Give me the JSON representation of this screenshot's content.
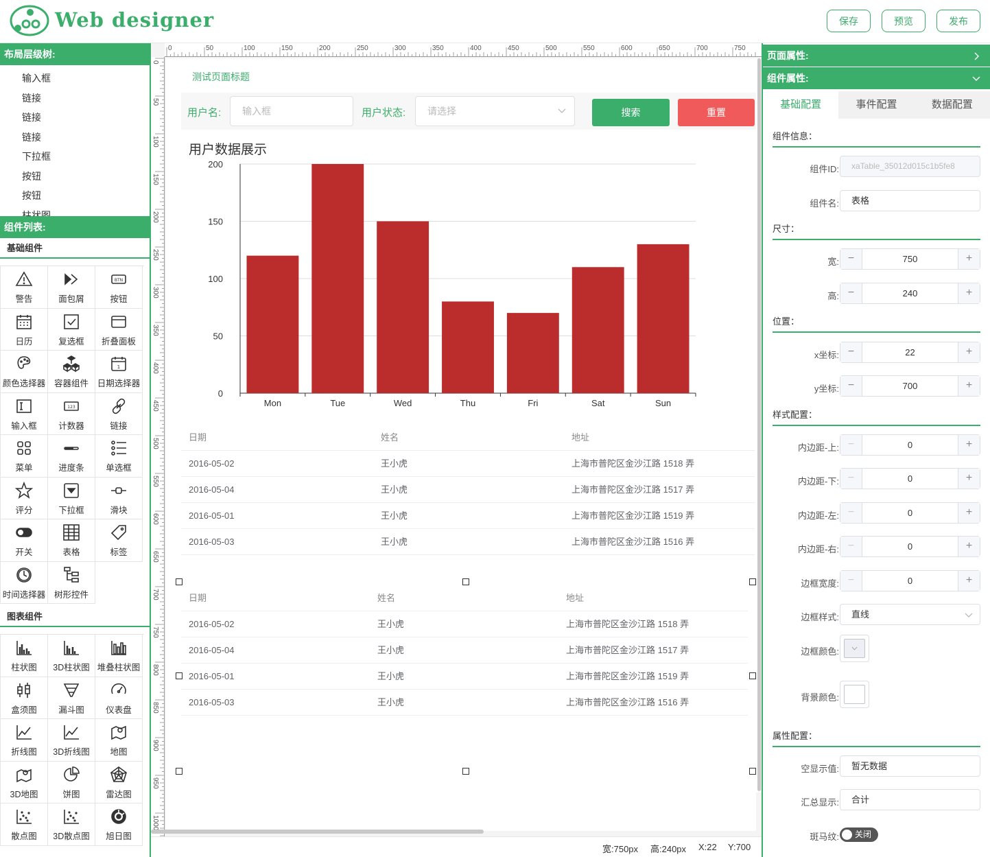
{
  "app": {
    "logo_text": "Web designer"
  },
  "header": {
    "save": "保存",
    "preview": "预览",
    "publish": "发布"
  },
  "left": {
    "tree_title": "布局层级树:",
    "tree_items": [
      "输入框",
      "链接",
      "链接",
      "链接",
      "下拉框",
      "按钮",
      "按钮",
      "柱状图"
    ],
    "components_title": "组件列表:",
    "basic_title": "基础组件",
    "basic": [
      {
        "label": "警告",
        "icon": "warning-icon"
      },
      {
        "label": "面包屑",
        "icon": "breadcrumb-icon"
      },
      {
        "label": "按钮",
        "icon": "button-icon"
      },
      {
        "label": "日历",
        "icon": "calendar-icon"
      },
      {
        "label": "复选框",
        "icon": "checkbox-icon"
      },
      {
        "label": "折叠面板",
        "icon": "collapse-icon"
      },
      {
        "label": "颜色选择器",
        "icon": "palette-icon"
      },
      {
        "label": "容器组件",
        "icon": "cubes-icon"
      },
      {
        "label": "日期选择器",
        "icon": "date-icon"
      },
      {
        "label": "输入框",
        "icon": "input-icon"
      },
      {
        "label": "计数器",
        "icon": "counter-icon"
      },
      {
        "label": "链接",
        "icon": "link-icon"
      },
      {
        "label": "菜单",
        "icon": "menu-icon"
      },
      {
        "label": "进度条",
        "icon": "progress-icon"
      },
      {
        "label": "单选框",
        "icon": "radio-list-icon"
      },
      {
        "label": "评分",
        "icon": "star-icon"
      },
      {
        "label": "下拉框",
        "icon": "select-icon"
      },
      {
        "label": "滑块",
        "icon": "slider-icon"
      },
      {
        "label": "开关",
        "icon": "switch-icon"
      },
      {
        "label": "表格",
        "icon": "table-icon"
      },
      {
        "label": "标签",
        "icon": "tag-icon"
      },
      {
        "label": "时间选择器",
        "icon": "clock-icon"
      },
      {
        "label": "树形控件",
        "icon": "tree-icon"
      }
    ],
    "chart_title": "图表组件",
    "charts": [
      {
        "label": "柱状图",
        "icon": "bar-chart-icon"
      },
      {
        "label": "3D柱状图",
        "icon": "bar3d-chart-icon"
      },
      {
        "label": "堆叠柱状图",
        "icon": "stacked-bar-icon"
      },
      {
        "label": "盒须图",
        "icon": "boxplot-icon"
      },
      {
        "label": "漏斗图",
        "icon": "funnel-icon"
      },
      {
        "label": "仪表盘",
        "icon": "gauge-icon"
      },
      {
        "label": "折线图",
        "icon": "line-chart-icon"
      },
      {
        "label": "3D折线图",
        "icon": "line3d-chart-icon"
      },
      {
        "label": "地图",
        "icon": "map-icon"
      },
      {
        "label": "3D地图",
        "icon": "map3d-icon"
      },
      {
        "label": "饼图",
        "icon": "pie-icon"
      },
      {
        "label": "雷达图",
        "icon": "radar-icon"
      },
      {
        "label": "散点图",
        "icon": "scatter-icon"
      },
      {
        "label": "3D散点图",
        "icon": "scatter3d-icon"
      },
      {
        "label": "旭日图",
        "icon": "sunburst-icon"
      }
    ]
  },
  "ruler": {
    "top": [
      "0",
      "50",
      "100",
      "150",
      "200",
      "250",
      "300",
      "350",
      "400",
      "450",
      "500",
      "550",
      "600",
      "650",
      "700",
      "750"
    ],
    "left": [
      "0",
      "50",
      "100",
      "150",
      "200",
      "250",
      "300",
      "350",
      "400",
      "450",
      "500",
      "550",
      "600",
      "650",
      "700",
      "750",
      "800",
      "850",
      "900",
      "950",
      "1000"
    ]
  },
  "page": {
    "title": "测试页面标题",
    "search": {
      "user_label": "用户名:",
      "user_placeholder": "输入框",
      "status_label": "用户状态:",
      "status_placeholder": "请选择",
      "search_btn": "搜索",
      "reset_btn": "重置"
    },
    "colors": {
      "primary": "#3cae6c",
      "danger": "#f05a5a",
      "bar": "#bb2c2c"
    }
  },
  "chart_data": {
    "type": "bar",
    "title": "用户数据展示",
    "categories": [
      "Mon",
      "Tue",
      "Wed",
      "Thu",
      "Fri",
      "Sat",
      "Sun"
    ],
    "values": [
      120,
      200,
      150,
      80,
      70,
      110,
      130
    ],
    "yticks": [
      "0",
      "50",
      "100",
      "150",
      "200"
    ],
    "ylim": [
      0,
      200
    ],
    "grid": true
  },
  "tables": [
    {
      "headers": [
        "日期",
        "姓名",
        "地址"
      ],
      "rows": [
        [
          "2016-05-02",
          "王小虎",
          "上海市普陀区金沙江路 1518 弄"
        ],
        [
          "2016-05-04",
          "王小虎",
          "上海市普陀区金沙江路 1517 弄"
        ],
        [
          "2016-05-01",
          "王小虎",
          "上海市普陀区金沙江路 1519 弄"
        ],
        [
          "2016-05-03",
          "王小虎",
          "上海市普陀区金沙江路 1516 弄"
        ]
      ]
    },
    {
      "headers": [
        "日期",
        "姓名",
        "地址"
      ],
      "rows": [
        [
          "2016-05-02",
          "王小虎",
          "上海市普陀区金沙江路 1518 弄"
        ],
        [
          "2016-05-04",
          "王小虎",
          "上海市普陀区金沙江路 1517 弄"
        ],
        [
          "2016-05-01",
          "王小虎",
          "上海市普陀区金沙江路 1519 弄"
        ],
        [
          "2016-05-03",
          "王小虎",
          "上海市普陀区金沙江路 1516 弄"
        ]
      ]
    }
  ],
  "status": {
    "width": "宽:750px",
    "height": "高:240px",
    "x": "X:22",
    "y": "Y:700"
  },
  "right": {
    "page_props": "页面属性:",
    "comp_props": "组件属性:",
    "tabs": [
      "基础配置",
      "事件配置",
      "数据配置"
    ],
    "info_title": "组件信息：",
    "id_label": "组件ID:",
    "id_value": "xaTable_35012d015c1b5fe8",
    "name_label": "组件名:",
    "name_value": "表格",
    "size_title": "尺寸：",
    "w_label": "宽:",
    "w_value": "750",
    "h_label": "高:",
    "h_value": "240",
    "pos_title": "位置：",
    "x_label": "x坐标:",
    "x_value": "22",
    "y_label": "y坐标:",
    "y_value": "700",
    "style_title": "样式配置：",
    "pt_label": "内边距-上:",
    "pt_value": "0",
    "pb_label": "内边距-下:",
    "pb_value": "0",
    "pl_label": "内边距-左:",
    "pl_value": "0",
    "pr_label": "内边距-右:",
    "pr_value": "0",
    "bw_label": "边框宽度:",
    "bw_value": "0",
    "bs_label": "边框样式:",
    "bs_value": "直线",
    "bc_label": "边框颜色:",
    "bc_value": "#eeeef5",
    "bg_label": "背景颜色:",
    "bg_value": "#ffffff",
    "attr_title": "属性配置：",
    "empty_label": "空显示值:",
    "empty_value": "暂无数据",
    "sum_label": "汇总显示:",
    "sum_value": "合计",
    "stripe_label": "斑马纹:",
    "stripe_value": "关闭"
  }
}
